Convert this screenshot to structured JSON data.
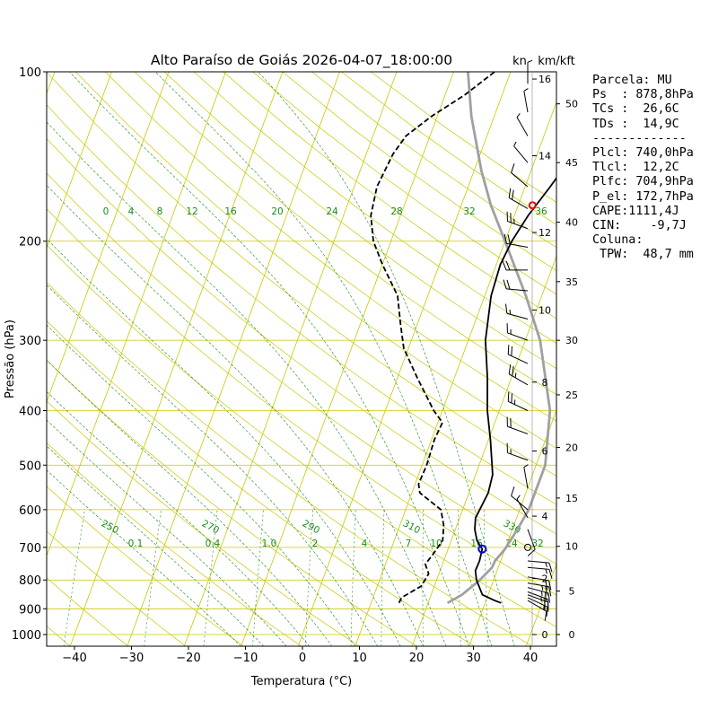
{
  "chart_data": {
    "type": "skew-t",
    "title": "Alto Paraíso de Goiás 2026-04-07_18:00:00",
    "xlabel": "Temperatura (°C)",
    "ylabel": "Pressão (hPa)",
    "xlim": [
      -45,
      45
    ],
    "ylim": [
      1050,
      100
    ],
    "x_ticks": [
      -40,
      -30,
      -20,
      -10,
      0,
      10,
      20,
      30,
      40
    ],
    "p_ticks": [
      100,
      200,
      300,
      400,
      500,
      600,
      700,
      800,
      900,
      1000
    ],
    "wind_units_label": "kn",
    "height_units_label": "km/kft",
    "km_ticks": [
      {
        "label": "0",
        "p": 1000
      },
      {
        "label": "2",
        "p": 795
      },
      {
        "label": "4",
        "p": 616
      },
      {
        "label": "6",
        "p": 472
      },
      {
        "label": "8",
        "p": 356
      },
      {
        "label": "10",
        "p": 265
      },
      {
        "label": "12",
        "p": 193
      },
      {
        "label": "14",
        "p": 141
      },
      {
        "label": "16",
        "p": 103
      }
    ],
    "kft_ticks": [
      {
        "label": "0",
        "p": 1000
      },
      {
        "label": "5",
        "p": 837
      },
      {
        "label": "10",
        "p": 697
      },
      {
        "label": "15",
        "p": 572
      },
      {
        "label": "20",
        "p": 465
      },
      {
        "label": "25",
        "p": 375
      },
      {
        "label": "30",
        "p": 300
      },
      {
        "label": "35",
        "p": 236
      },
      {
        "label": "40",
        "p": 185
      },
      {
        "label": "45",
        "p": 145
      },
      {
        "label": "50",
        "p": 114
      }
    ],
    "temperature_profile": [
      {
        "p": 878.8,
        "t": 32.8
      },
      {
        "p": 870,
        "t": 31.5
      },
      {
        "p": 850,
        "t": 29.0
      },
      {
        "p": 800,
        "t": 27.0
      },
      {
        "p": 770,
        "t": 26.2
      },
      {
        "p": 740,
        "t": 26.3
      },
      {
        "p": 704.9,
        "t": 26.0
      },
      {
        "p": 680,
        "t": 24.5
      },
      {
        "p": 650,
        "t": 23.4
      },
      {
        "p": 620,
        "t": 22.8
      },
      {
        "p": 600,
        "t": 23.0
      },
      {
        "p": 560,
        "t": 23.4
      },
      {
        "p": 520,
        "t": 23.0
      },
      {
        "p": 490,
        "t": 21.9
      },
      {
        "p": 450,
        "t": 20.3
      },
      {
        "p": 400,
        "t": 17.9
      },
      {
        "p": 350,
        "t": 15.8
      },
      {
        "p": 300,
        "t": 13.0
      },
      {
        "p": 250,
        "t": 11.1
      },
      {
        "p": 220,
        "t": 10.7
      },
      {
        "p": 200,
        "t": 11.2
      },
      {
        "p": 180,
        "t": 12.4
      },
      {
        "p": 160,
        "t": 14.4
      },
      {
        "p": 140,
        "t": 16.4
      },
      {
        "p": 120,
        "t": 19.8
      },
      {
        "p": 110,
        "t": 22.8
      },
      {
        "p": 100,
        "t": 27.2
      }
    ],
    "dewpoint_profile": [
      {
        "p": 878.8,
        "t": 14.9
      },
      {
        "p": 860,
        "t": 15.0
      },
      {
        "p": 820,
        "t": 17.7
      },
      {
        "p": 780,
        "t": 18.2
      },
      {
        "p": 750,
        "t": 17.0
      },
      {
        "p": 720,
        "t": 17.7
      },
      {
        "p": 680,
        "t": 18.5
      },
      {
        "p": 640,
        "t": 17.7
      },
      {
        "p": 600,
        "t": 16.2
      },
      {
        "p": 560,
        "t": 11.4
      },
      {
        "p": 540,
        "t": 10.6
      },
      {
        "p": 500,
        "t": 10.8
      },
      {
        "p": 450,
        "t": 10.5
      },
      {
        "p": 420,
        "t": 10.8
      },
      {
        "p": 400,
        "t": 8.5
      },
      {
        "p": 350,
        "t": 3.5
      },
      {
        "p": 310,
        "t": -0.8
      },
      {
        "p": 280,
        "t": -3.0
      },
      {
        "p": 250,
        "t": -5.3
      },
      {
        "p": 220,
        "t": -10.0
      },
      {
        "p": 200,
        "t": -13.1
      },
      {
        "p": 180,
        "t": -15.2
      },
      {
        "p": 160,
        "t": -16.0
      },
      {
        "p": 140,
        "t": -15.3
      },
      {
        "p": 130,
        "t": -14.2
      },
      {
        "p": 120,
        "t": -11.0
      },
      {
        "p": 110,
        "t": -6.6
      },
      {
        "p": 100,
        "t": -2.8
      }
    ],
    "parcel_profile": [
      {
        "p": 878.8,
        "t": 23.4
      },
      {
        "p": 850,
        "t": 25.4
      },
      {
        "p": 800,
        "t": 27.6
      },
      {
        "p": 760,
        "t": 28.9
      },
      {
        "p": 740,
        "t": 29.0
      },
      {
        "p": 704.9,
        "t": 30.0
      },
      {
        "p": 650,
        "t": 30.9
      },
      {
        "p": 600,
        "t": 31.6
      },
      {
        "p": 500,
        "t": 31.6
      },
      {
        "p": 400,
        "t": 28.9
      },
      {
        "p": 300,
        "t": 22.6
      },
      {
        "p": 250,
        "t": 17.2
      },
      {
        "p": 200,
        "t": 10.0
      },
      {
        "p": 172.7,
        "t": 5.2
      },
      {
        "p": 150,
        "t": 1.3
      },
      {
        "p": 120,
        "t": -4.0
      },
      {
        "p": 100,
        "t": -7.5
      }
    ],
    "lfc_marker": {
      "p": 704.9,
      "t": 26.0,
      "color": "#0000ee"
    },
    "el_marker": {
      "p": 172.7,
      "t": 12.5,
      "color": "#dd0000"
    },
    "dry_adiabat_labels": [
      "250",
      "270",
      "290",
      "310",
      "330"
    ],
    "mixing_ratio_labels": [
      "0.1",
      "0.4",
      "1.0",
      "2",
      "4",
      "7",
      "10",
      "16",
      "24",
      "32"
    ],
    "moist_adiabat_labels": [
      "0",
      "4",
      "8",
      "12",
      "16",
      "20",
      "24",
      "28",
      "32",
      "36"
    ],
    "wind_barbs": [
      {
        "p": 870,
        "dir": 120,
        "spd": 10
      },
      {
        "p": 860,
        "dir": 115,
        "spd": 15
      },
      {
        "p": 850,
        "dir": 110,
        "spd": 20
      },
      {
        "p": 840,
        "dir": 110,
        "spd": 25
      },
      {
        "p": 825,
        "dir": 105,
        "spd": 25
      },
      {
        "p": 810,
        "dir": 100,
        "spd": 25
      },
      {
        "p": 790,
        "dir": 100,
        "spd": 20
      },
      {
        "p": 760,
        "dir": 95,
        "spd": 15
      },
      {
        "p": 740,
        "dir": 95,
        "spd": 15
      },
      {
        "p": 700,
        "dir": 0,
        "spd": 0
      },
      {
        "p": 650,
        "dir": 160,
        "spd": 10
      },
      {
        "p": 620,
        "dir": 330,
        "spd": 5
      },
      {
        "p": 600,
        "dir": 310,
        "spd": 10
      },
      {
        "p": 550,
        "dir": 350,
        "spd": 5
      },
      {
        "p": 490,
        "dir": 290,
        "spd": 15
      },
      {
        "p": 440,
        "dir": 290,
        "spd": 20
      },
      {
        "p": 400,
        "dir": 295,
        "spd": 25
      },
      {
        "p": 360,
        "dir": 300,
        "spd": 25
      },
      {
        "p": 330,
        "dir": 295,
        "spd": 20
      },
      {
        "p": 300,
        "dir": 290,
        "spd": 15
      },
      {
        "p": 275,
        "dir": 285,
        "spd": 15
      },
      {
        "p": 245,
        "dir": 275,
        "spd": 20
      },
      {
        "p": 225,
        "dir": 270,
        "spd": 20
      },
      {
        "p": 205,
        "dir": 280,
        "spd": 20
      },
      {
        "p": 190,
        "dir": 290,
        "spd": 25
      },
      {
        "p": 175,
        "dir": 300,
        "spd": 20
      },
      {
        "p": 160,
        "dir": 310,
        "spd": 10
      },
      {
        "p": 145,
        "dir": 320,
        "spd": 5
      },
      {
        "p": 130,
        "dir": 330,
        "spd": 5
      },
      {
        "p": 118,
        "dir": 350,
        "spd": 5
      },
      {
        "p": 105,
        "dir": 0,
        "spd": 5
      }
    ]
  },
  "info_panel": {
    "line1": "Parcela: MU",
    "line2": "Ps  : 878,8hPa",
    "line3": "TCs :  26,6C",
    "line4": "TDs :  14,9C",
    "line5": "-------------",
    "line6": "Plcl: 740,0hPa",
    "line7": "Tlcl:  12,2C",
    "line8": "Plfc: 704,9hPa",
    "line9": "P_el: 172,7hPa",
    "line10": "CAPE:1111,4J",
    "line11": "CIN:    -9,7J",
    "line12": "",
    "line13": "Coluna:",
    "line14": " TPW:  48,7 mm"
  },
  "colors": {
    "temperature": "#000000",
    "dewpoint": "#000000",
    "parcel": "#a0a0a0",
    "isobar": "#c8c800",
    "isotherm": "#c8c800",
    "dry_adiabat": "#c8c800",
    "moist_adiabat": "#1a8a1a",
    "mixing_ratio": "#1a8a1a"
  }
}
